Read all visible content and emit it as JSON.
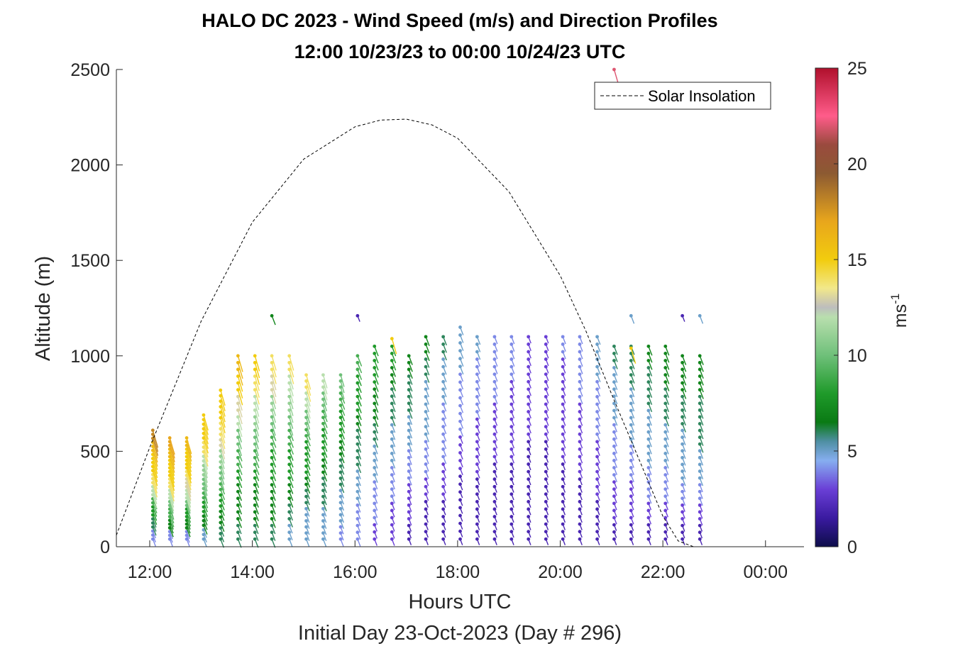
{
  "chart_data": {
    "type": "scatter",
    "title": "HALO DC 2023 - Wind Speed (m/s) and Direction Profiles",
    "subtitle": "12:00 10/23/23 to 00:00 10/24/23  UTC",
    "xlabel": "Hours UTC",
    "xlabel2": "Initial Day 23-Oct-2023 (Day # 296)",
    "ylabel": "Altitude (m)",
    "colorbar_label": "ms",
    "colorbar_label_exp": "-1",
    "x_ticks": [
      "12:00",
      "14:00",
      "16:00",
      "18:00",
      "20:00",
      "22:00",
      "00:00"
    ],
    "x_tick_hours": [
      12,
      14,
      16,
      18,
      20,
      22,
      24
    ],
    "xlim": [
      11.35,
      24.75
    ],
    "y_ticks": [
      0,
      500,
      1000,
      1500,
      2000,
      2500
    ],
    "ylim": [
      0,
      2500
    ],
    "colorbar_ticks": [
      0,
      5,
      10,
      15,
      20,
      25
    ],
    "colorbar_range": [
      0,
      25
    ],
    "legend": {
      "label": "Solar Insolation",
      "location": "top-right",
      "style": "dashed"
    },
    "solar_insolation": {
      "hours": [
        11.35,
        12,
        13,
        14,
        15,
        16,
        16.5,
        17,
        17.5,
        18,
        19,
        20,
        20.5,
        21,
        21.5,
        22,
        22.3,
        22.6,
        24.75
      ],
      "altitude_equivalent": [
        60,
        520,
        1180,
        1700,
        2030,
        2200,
        2235,
        2240,
        2210,
        2140,
        1860,
        1420,
        1130,
        800,
        480,
        160,
        30,
        0,
        0
      ]
    },
    "profiles": [
      {
        "hour": 12.06,
        "top_m": 610,
        "speeds_low_to_high": [
          4,
          6,
          8,
          9,
          12,
          14,
          15,
          15,
          16,
          18
        ]
      },
      {
        "hour": 12.39,
        "top_m": 570,
        "speeds_low_to_high": [
          4,
          7,
          9,
          10,
          12,
          14,
          15,
          15,
          16,
          17
        ]
      },
      {
        "hour": 12.72,
        "top_m": 570,
        "speeds_low_to_high": [
          4,
          7,
          8,
          10,
          12,
          13,
          14,
          15,
          15,
          16
        ]
      },
      {
        "hour": 13.05,
        "top_m": 690,
        "speeds_low_to_high": [
          5,
          7,
          8,
          9,
          10,
          11,
          12,
          14,
          15,
          15
        ]
      },
      {
        "hour": 13.38,
        "top_m": 820,
        "speeds_low_to_high": [
          6,
          7,
          8,
          9,
          10,
          11,
          13,
          14,
          15,
          15
        ]
      },
      {
        "hour": 13.72,
        "top_m": 1000,
        "speeds_low_to_high": [
          6,
          7,
          7,
          8,
          9,
          10,
          12,
          13,
          15,
          16
        ]
      },
      {
        "hour": 14.05,
        "top_m": 1000,
        "speeds_low_to_high": [
          6,
          7,
          7,
          8,
          9,
          10,
          11,
          12,
          14,
          15
        ]
      },
      {
        "hour": 14.38,
        "top_m": 1000,
        "speeds_low_to_high": [
          6,
          7,
          7,
          8,
          8,
          9,
          10,
          11,
          13,
          14
        ]
      },
      {
        "hour": 14.72,
        "top_m": 1000,
        "speeds_low_to_high": [
          5,
          6,
          7,
          8,
          8,
          9,
          10,
          11,
          12,
          14
        ]
      },
      {
        "hour": 15.05,
        "top_m": 900,
        "speeds_low_to_high": [
          5,
          5,
          6,
          7,
          8,
          8,
          9,
          10,
          12,
          14
        ]
      },
      {
        "hour": 15.38,
        "top_m": 900,
        "speeds_low_to_high": [
          5,
          5,
          6,
          6,
          7,
          8,
          8,
          9,
          10,
          12
        ]
      },
      {
        "hour": 15.72,
        "top_m": 900,
        "speeds_low_to_high": [
          4,
          5,
          5,
          6,
          6,
          7,
          8,
          8,
          9,
          10
        ]
      },
      {
        "hour": 16.05,
        "top_m": 1000,
        "speeds_low_to_high": [
          4,
          4,
          5,
          5,
          6,
          6,
          7,
          8,
          8,
          9
        ]
      },
      {
        "hour": 16.38,
        "top_m": 1050,
        "speeds_low_to_high": [
          3,
          4,
          4,
          5,
          5,
          6,
          7,
          7,
          8,
          8
        ]
      },
      {
        "hour": 16.72,
        "top_m": 1050,
        "speeds_low_to_high": [
          3,
          3,
          4,
          4,
          5,
          5,
          6,
          6,
          7,
          8
        ]
      },
      {
        "hour": 17.05,
        "top_m": 1000,
        "speeds_low_to_high": [
          2,
          3,
          3,
          4,
          4,
          5,
          5,
          6,
          6,
          7
        ]
      },
      {
        "hour": 17.38,
        "top_m": 1100,
        "speeds_low_to_high": [
          2,
          2,
          3,
          4,
          4,
          5,
          5,
          5,
          6,
          7
        ]
      },
      {
        "hour": 17.72,
        "top_m": 1100,
        "speeds_low_to_high": [
          2,
          2,
          3,
          3,
          4,
          4,
          4,
          5,
          5,
          6
        ]
      },
      {
        "hour": 18.05,
        "top_m": 1150,
        "speeds_low_to_high": [
          2,
          2,
          2,
          3,
          3,
          4,
          4,
          4,
          5,
          5
        ]
      },
      {
        "hour": 18.38,
        "top_m": 1100,
        "speeds_low_to_high": [
          2,
          2,
          2,
          3,
          3,
          3,
          4,
          4,
          4,
          5
        ]
      },
      {
        "hour": 18.72,
        "top_m": 1100,
        "speeds_low_to_high": [
          2,
          2,
          2,
          2,
          3,
          3,
          3,
          4,
          4,
          4
        ]
      },
      {
        "hour": 19.05,
        "top_m": 1100,
        "speeds_low_to_high": [
          2,
          2,
          2,
          2,
          3,
          3,
          3,
          3,
          4,
          4
        ]
      },
      {
        "hour": 19.38,
        "top_m": 1100,
        "speeds_low_to_high": [
          2,
          2,
          2,
          2,
          2,
          3,
          3,
          3,
          3,
          3
        ]
      },
      {
        "hour": 19.72,
        "top_m": 1100,
        "speeds_low_to_high": [
          2,
          2,
          2,
          2,
          2,
          3,
          3,
          3,
          3,
          3
        ]
      },
      {
        "hour": 20.05,
        "top_m": 1100,
        "speeds_low_to_high": [
          2,
          2,
          2,
          2,
          3,
          3,
          3,
          3,
          3,
          4
        ]
      },
      {
        "hour": 20.38,
        "top_m": 1100,
        "speeds_low_to_high": [
          2,
          2,
          2,
          3,
          3,
          3,
          3,
          4,
          4,
          4
        ]
      },
      {
        "hour": 20.72,
        "top_m": 1100,
        "speeds_low_to_high": [
          2,
          2,
          3,
          3,
          3,
          4,
          4,
          4,
          5,
          5
        ]
      },
      {
        "hour": 21.05,
        "top_m": 1050,
        "speeds_low_to_high": [
          2,
          3,
          3,
          4,
          4,
          4,
          5,
          5,
          5,
          6
        ]
      },
      {
        "hour": 21.38,
        "top_m": 1050,
        "speeds_low_to_high": [
          2,
          3,
          3,
          4,
          4,
          5,
          5,
          5,
          6,
          6
        ]
      },
      {
        "hour": 21.72,
        "top_m": 1050,
        "speeds_low_to_high": [
          2,
          3,
          4,
          4,
          5,
          5,
          5,
          6,
          6,
          7
        ]
      },
      {
        "hour": 22.05,
        "top_m": 1050,
        "speeds_low_to_high": [
          2,
          3,
          4,
          4,
          5,
          5,
          6,
          6,
          7,
          7
        ]
      },
      {
        "hour": 22.38,
        "top_m": 1000,
        "speeds_low_to_high": [
          2,
          3,
          4,
          5,
          5,
          5,
          6,
          6,
          7,
          7
        ]
      },
      {
        "hour": 22.72,
        "top_m": 1000,
        "speeds_low_to_high": [
          2,
          3,
          4,
          5,
          5,
          6,
          6,
          6,
          7,
          7
        ]
      }
    ],
    "isolated_vectors": [
      {
        "hour": 14.38,
        "altitude_m": 1210,
        "speed": 7
      },
      {
        "hour": 16.05,
        "altitude_m": 1210,
        "speed": 2
      },
      {
        "hour": 16.72,
        "altitude_m": 1090,
        "speed": 15
      },
      {
        "hour": 21.05,
        "altitude_m": 2500,
        "speed": 22
      },
      {
        "hour": 21.38,
        "altitude_m": 1210,
        "speed": 5
      },
      {
        "hour": 21.38,
        "altitude_m": 1040,
        "speed": 15
      },
      {
        "hour": 22.38,
        "altitude_m": 1210,
        "speed": 2
      },
      {
        "hour": 22.72,
        "altitude_m": 1210,
        "speed": 5
      }
    ]
  }
}
